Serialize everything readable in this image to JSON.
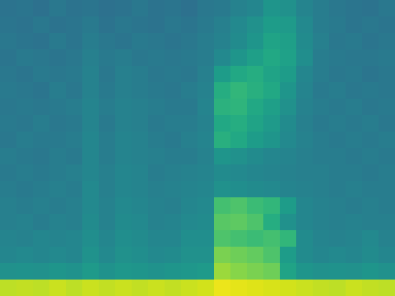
{
  "chart_data": {
    "type": "heatmap",
    "color": "viridis",
    "tick_labels": false,
    "zlim": [
      0,
      1
    ],
    "values": [
      [
        0.38,
        0.39,
        0.37,
        0.4,
        0.38,
        0.39,
        0.37,
        0.38,
        0.4,
        0.38,
        0.39,
        0.37,
        0.4,
        0.41,
        0.44,
        0.46,
        0.52,
        0.5,
        0.45,
        0.42,
        0.4,
        0.39,
        0.38,
        0.4
      ],
      [
        0.39,
        0.38,
        0.4,
        0.38,
        0.39,
        0.41,
        0.38,
        0.4,
        0.39,
        0.38,
        0.4,
        0.39,
        0.41,
        0.43,
        0.47,
        0.5,
        0.55,
        0.54,
        0.47,
        0.42,
        0.41,
        0.39,
        0.4,
        0.39
      ],
      [
        0.4,
        0.39,
        0.38,
        0.41,
        0.39,
        0.42,
        0.4,
        0.39,
        0.41,
        0.4,
        0.39,
        0.4,
        0.42,
        0.44,
        0.48,
        0.52,
        0.58,
        0.56,
        0.48,
        0.43,
        0.4,
        0.41,
        0.39,
        0.4
      ],
      [
        0.39,
        0.41,
        0.4,
        0.39,
        0.4,
        0.43,
        0.41,
        0.42,
        0.4,
        0.41,
        0.4,
        0.41,
        0.42,
        0.47,
        0.52,
        0.56,
        0.6,
        0.57,
        0.49,
        0.42,
        0.41,
        0.4,
        0.4,
        0.41
      ],
      [
        0.4,
        0.39,
        0.41,
        0.4,
        0.41,
        0.44,
        0.4,
        0.43,
        0.42,
        0.4,
        0.41,
        0.4,
        0.43,
        0.55,
        0.6,
        0.62,
        0.58,
        0.55,
        0.46,
        0.42,
        0.4,
        0.41,
        0.39,
        0.4
      ],
      [
        0.41,
        0.4,
        0.39,
        0.42,
        0.4,
        0.44,
        0.41,
        0.43,
        0.42,
        0.41,
        0.4,
        0.42,
        0.44,
        0.62,
        0.66,
        0.63,
        0.6,
        0.52,
        0.45,
        0.41,
        0.42,
        0.4,
        0.41,
        0.4
      ],
      [
        0.4,
        0.41,
        0.4,
        0.41,
        0.42,
        0.45,
        0.42,
        0.44,
        0.43,
        0.42,
        0.41,
        0.41,
        0.45,
        0.64,
        0.65,
        0.6,
        0.56,
        0.5,
        0.44,
        0.42,
        0.41,
        0.42,
        0.4,
        0.41
      ],
      [
        0.41,
        0.4,
        0.42,
        0.4,
        0.41,
        0.45,
        0.41,
        0.44,
        0.43,
        0.41,
        0.42,
        0.42,
        0.44,
        0.6,
        0.62,
        0.58,
        0.54,
        0.48,
        0.43,
        0.41,
        0.42,
        0.41,
        0.42,
        0.4
      ],
      [
        0.4,
        0.42,
        0.41,
        0.41,
        0.42,
        0.46,
        0.42,
        0.45,
        0.44,
        0.42,
        0.41,
        0.43,
        0.45,
        0.63,
        0.6,
        0.55,
        0.52,
        0.47,
        0.44,
        0.42,
        0.41,
        0.42,
        0.41,
        0.42
      ],
      [
        0.42,
        0.41,
        0.4,
        0.42,
        0.41,
        0.46,
        0.42,
        0.45,
        0.44,
        0.43,
        0.42,
        0.42,
        0.44,
        0.52,
        0.5,
        0.48,
        0.46,
        0.45,
        0.43,
        0.42,
        0.42,
        0.41,
        0.42,
        0.41
      ],
      [
        0.41,
        0.42,
        0.41,
        0.42,
        0.43,
        0.46,
        0.43,
        0.46,
        0.45,
        0.42,
        0.43,
        0.44,
        0.45,
        0.48,
        0.47,
        0.46,
        0.45,
        0.44,
        0.43,
        0.43,
        0.42,
        0.42,
        0.41,
        0.42
      ],
      [
        0.42,
        0.41,
        0.42,
        0.43,
        0.42,
        0.47,
        0.43,
        0.46,
        0.45,
        0.43,
        0.44,
        0.45,
        0.46,
        0.5,
        0.49,
        0.48,
        0.47,
        0.45,
        0.44,
        0.43,
        0.42,
        0.43,
        0.42,
        0.42
      ],
      [
        0.43,
        0.42,
        0.43,
        0.42,
        0.43,
        0.47,
        0.44,
        0.47,
        0.46,
        0.44,
        0.43,
        0.46,
        0.47,
        0.7,
        0.72,
        0.68,
        0.66,
        0.55,
        0.46,
        0.44,
        0.43,
        0.42,
        0.43,
        0.42
      ],
      [
        0.43,
        0.44,
        0.42,
        0.44,
        0.43,
        0.48,
        0.44,
        0.48,
        0.47,
        0.44,
        0.45,
        0.47,
        0.48,
        0.74,
        0.75,
        0.72,
        0.62,
        0.5,
        0.46,
        0.44,
        0.43,
        0.44,
        0.43,
        0.43
      ],
      [
        0.45,
        0.44,
        0.46,
        0.45,
        0.46,
        0.49,
        0.46,
        0.49,
        0.48,
        0.46,
        0.46,
        0.49,
        0.49,
        0.72,
        0.7,
        0.68,
        0.7,
        0.66,
        0.48,
        0.45,
        0.44,
        0.45,
        0.47,
        0.44
      ],
      [
        0.46,
        0.47,
        0.46,
        0.47,
        0.46,
        0.51,
        0.47,
        0.5,
        0.49,
        0.47,
        0.48,
        0.5,
        0.5,
        0.8,
        0.78,
        0.76,
        0.72,
        0.55,
        0.48,
        0.46,
        0.47,
        0.46,
        0.48,
        0.46
      ],
      [
        0.5,
        0.51,
        0.5,
        0.52,
        0.51,
        0.54,
        0.51,
        0.53,
        0.52,
        0.51,
        0.52,
        0.53,
        0.54,
        0.85,
        0.82,
        0.8,
        0.78,
        0.58,
        0.52,
        0.5,
        0.51,
        0.5,
        0.52,
        0.5
      ],
      [
        0.9,
        0.91,
        0.9,
        0.92,
        0.9,
        0.92,
        0.91,
        0.92,
        0.91,
        0.92,
        0.91,
        0.92,
        0.93,
        0.97,
        0.96,
        0.95,
        0.94,
        0.93,
        0.92,
        0.91,
        0.9,
        0.92,
        0.91,
        0.9
      ]
    ]
  }
}
